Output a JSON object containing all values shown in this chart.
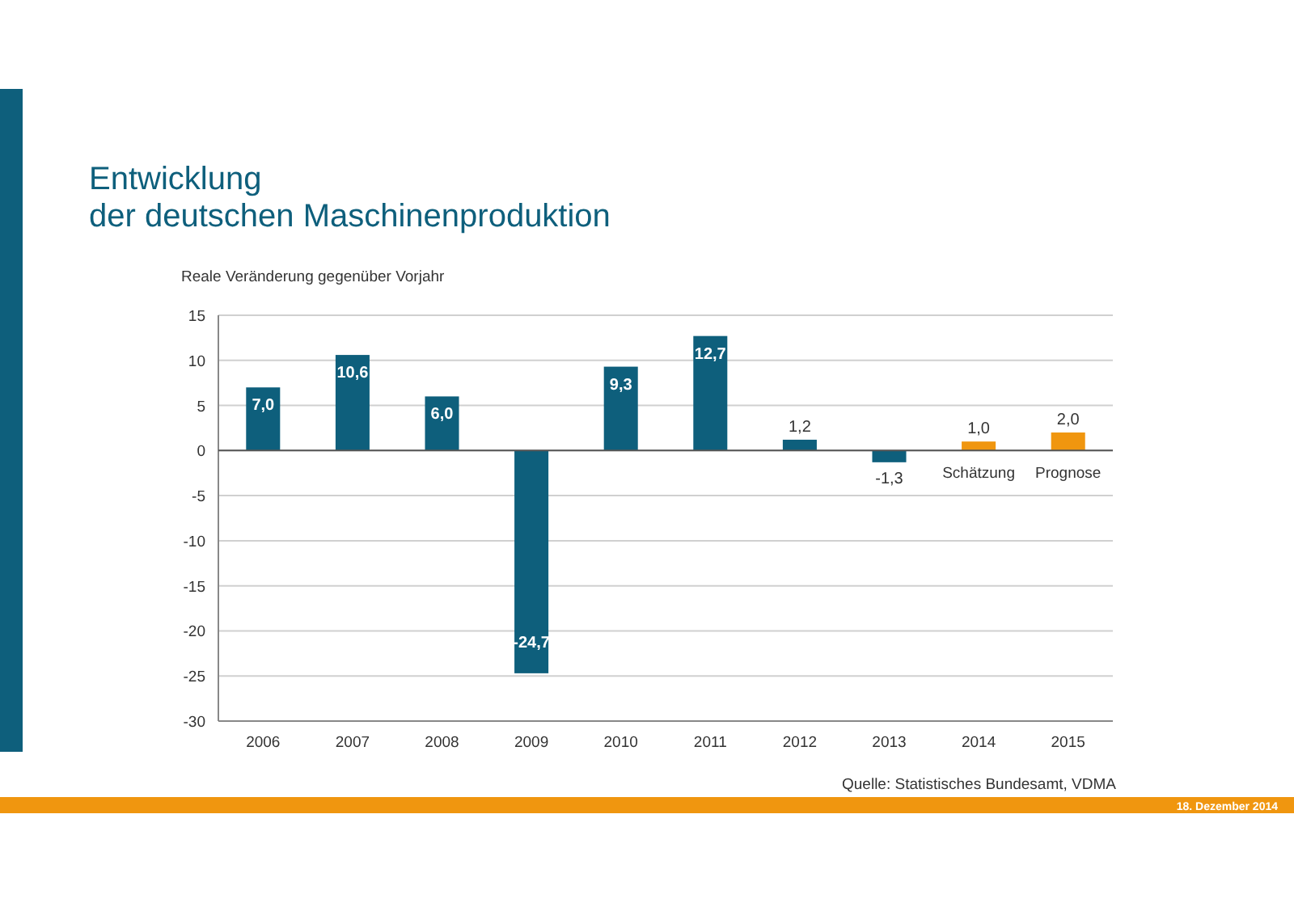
{
  "chart_data": {
    "type": "bar",
    "title": "Entwicklung\nder deutschen Maschinenproduktion",
    "ylabel": "Reale Veränderung gegenüber Vorjahr",
    "categories": [
      "2006",
      "2007",
      "2008",
      "2009",
      "2010",
      "2011",
      "2012",
      "2013",
      "2014",
      "2015"
    ],
    "values": [
      7.0,
      10.6,
      6.0,
      -24.7,
      9.3,
      12.7,
      1.2,
      -1.3,
      1.0,
      2.0
    ],
    "value_labels": [
      "7,0",
      "10,6",
      "6,0",
      "-24,7",
      "9,3",
      "12,7",
      "1,2",
      "-1,3",
      "1,0",
      "2,0"
    ],
    "colors": [
      "#0e5f7c",
      "#0e5f7c",
      "#0e5f7c",
      "#0e5f7c",
      "#0e5f7c",
      "#0e5f7c",
      "#0e5f7c",
      "#0e5f7c",
      "#f0960f",
      "#f0960f"
    ],
    "ylim": [
      -30,
      15
    ],
    "yticks": [
      -30,
      -25,
      -20,
      -15,
      -10,
      -5,
      0,
      5,
      10,
      15
    ],
    "grid": "y",
    "annotations": [
      {
        "text": "Schätzung",
        "x": "2014",
        "y": 0
      },
      {
        "text": "Prognose",
        "x": "2015",
        "y": 0
      },
      "Quelle: Statistisches Bundesamt, VDMA",
      "18. Dezember 2014"
    ]
  }
}
